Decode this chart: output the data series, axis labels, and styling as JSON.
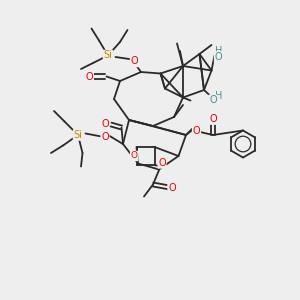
{
  "bg_color": "#eeeeee",
  "bond_color": "#2a2a2a",
  "oxygen_color": "#ee0000",
  "silicon_color": "#cc8800",
  "oh_color": "#4a9090",
  "bond_lw": 1.3,
  "font_size_atom": 7.0,
  "xlim": [
    0,
    10
  ],
  "ylim": [
    0,
    10
  ]
}
